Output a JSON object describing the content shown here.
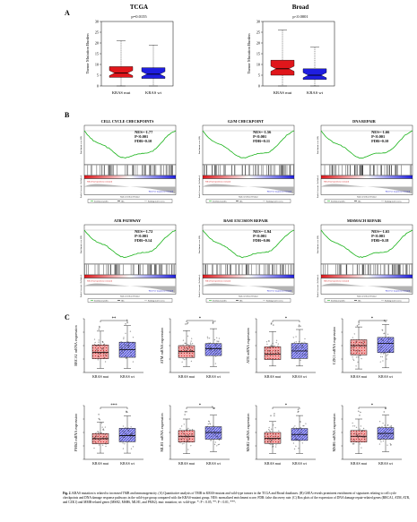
{
  "panel_labels": [
    "A",
    "B",
    "C"
  ],
  "panelA": [
    {
      "title": "TCGA",
      "pvalue": "p=0.0155",
      "ylabel": "Tumor Mutation Burden",
      "yticks": [
        "0",
        "5",
        "10",
        "15",
        "20",
        "25",
        "30"
      ],
      "groups": [
        "KRAS mut",
        "KRAS wt"
      ]
    },
    {
      "title": "Broad",
      "pvalue": "p<0.0001",
      "ylabel": "Tumor Mutation Burden",
      "yticks": [
        "0",
        "5",
        "10",
        "15",
        "20",
        "25",
        "30"
      ],
      "groups": [
        "KRAS mut",
        "KRAS wt"
      ]
    }
  ],
  "panelB": {
    "score_label": "Enrichment score (ES)",
    "rank_label": "Ranked list metric (PreRanked)",
    "xaxis_label": "Rank in Ordered Dataset",
    "pos_corr": "'KRAS-mut' (positively correlated)",
    "neg_corr": "'KRAS-wt' (negatively correlated)",
    "legend": [
      "Enrichment profile",
      "Hits",
      "Ranking metric scores"
    ],
    "plots": [
      {
        "title": "CELL CYCLE CHECKPOINTS",
        "nes": "NES=-1.77",
        "p": "P<0.001",
        "fdr": "FDR=0.10"
      },
      {
        "title": "G2/M CHECKPOINT",
        "nes": "NES=-1.56",
        "p": "P<0.001",
        "fdr": "FDR=0.11"
      },
      {
        "title": "DNA REPAIR",
        "nes": "NES=-1.66",
        "p": "P<0.001",
        "fdr": "FDR=0.10"
      },
      {
        "title": "ATR PATHWAY",
        "nes": "NES=-1.72",
        "p": "P<0.001",
        "fdr": "FDR=0.14"
      },
      {
        "title": "BASE EXCISION REPAIR",
        "nes": "NES=-1.94",
        "p": "P<0.001",
        "fdr": "FDR=0.06"
      },
      {
        "title": "MISMACH REPAIR",
        "nes": "NES=-1.65",
        "p": "P<0.001",
        "fdr": "FDR=0.18"
      }
    ]
  },
  "panelC": {
    "groups": [
      "KRAS mut",
      "KRAS wt"
    ],
    "plots": [
      {
        "ylabel": "BRCA1 mRNA expression",
        "sig": "**"
      },
      {
        "ylabel": "ATM mRNA expression",
        "sig": "*"
      },
      {
        "ylabel": "ATR mRNA expression",
        "sig": "*"
      },
      {
        "ylabel": "CZK1 mRNA expression",
        "sig": "*"
      },
      {
        "ylabel": "PMS2 mRNA expression",
        "sig": "***"
      },
      {
        "ylabel": "MLH1 mRNA expression",
        "sig": "*"
      },
      {
        "ylabel": "MSH2 mRNA expression",
        "sig": "*"
      },
      {
        "ylabel": "MSH6 mRNA expression",
        "sig": "*"
      }
    ]
  },
  "colors": {
    "mut": "#e0161b",
    "wt": "#1f1ee0",
    "gsea_line": "#18b218",
    "heat_pos": "#e0161b",
    "heat_neg": "#1f1ee0",
    "rank_fill": "#b3b3b3"
  },
  "caption": {
    "label": "Fig. 2.",
    "text": "KRAS mutation is related to increased TMB and immunogenicity. (A) Quantitative analysis of TMB in KRAS-mutant and wild-type tumors in the TCGA and Broad databases. (B) GSEA reveals prominent enrichment of signatures relating to cell cycle checkpoints and DNA damage response pathways in the wild-type group compared with the KRAS-mutant group. NES: normalized enrichment score; FDR: false discovery rate. (C) Box plots of the expression of DNA damage repair-related genes (BRCA1, ATM, ATR, and CZK1) and MMR-related genes (MSH2, MSH6, MLH1, and PMS2). mut: mutation; wt: wild-type. *: P < 0.05, **: P < 0.01, ***:"
  }
}
